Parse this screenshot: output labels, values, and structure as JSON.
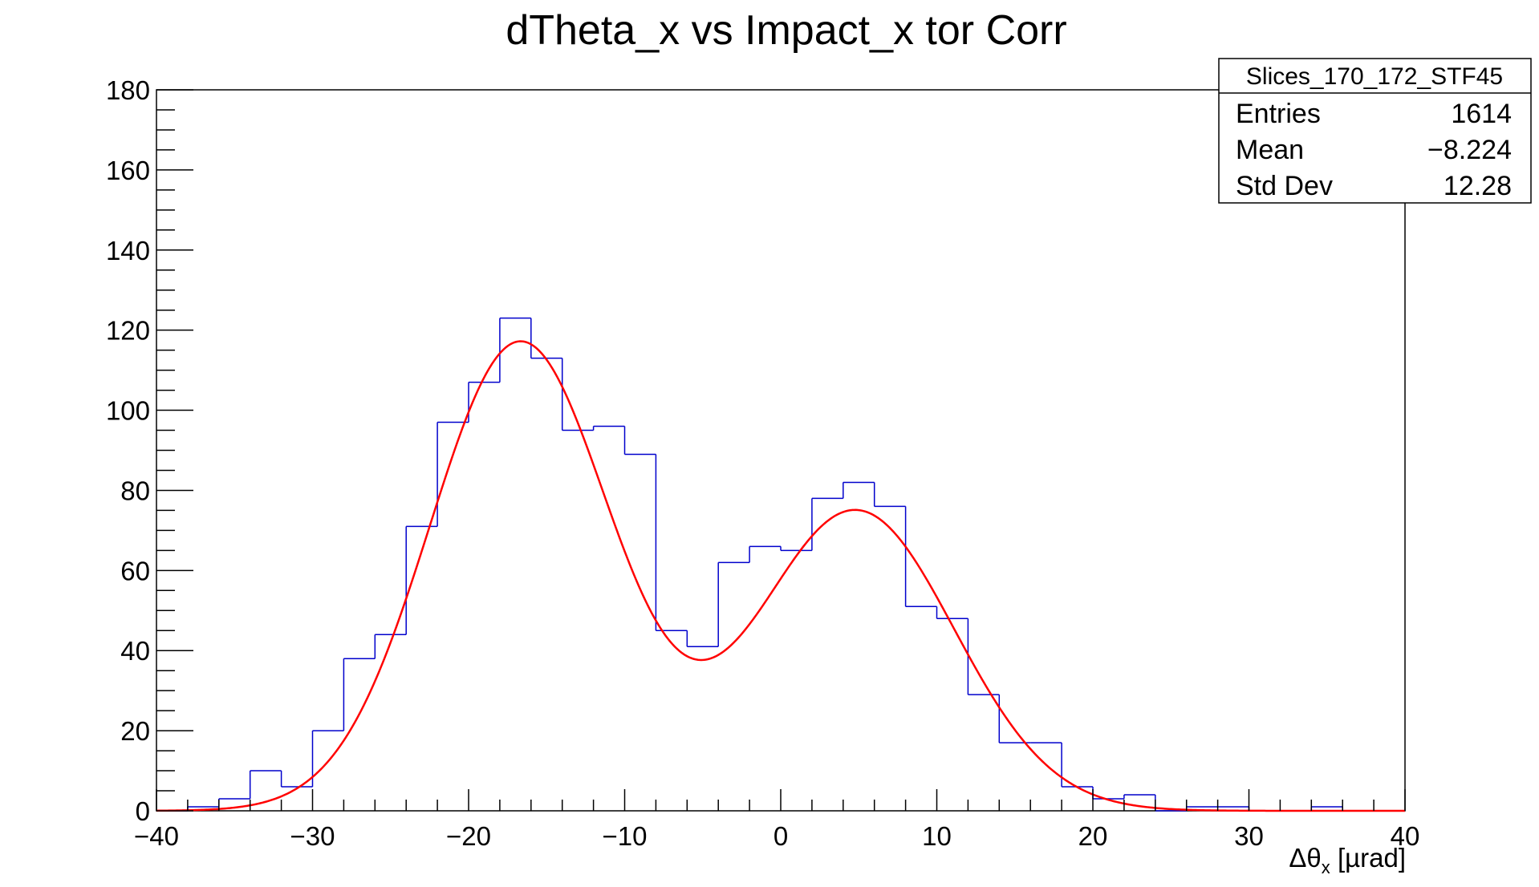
{
  "chart_data": {
    "type": "histogram",
    "title": "dTheta_x vs Impact_x tor Corr",
    "xlabel": "Δθ",
    "xlabel_sub": "x",
    "xlabel_unit": " [µrad]",
    "xlim": [
      -40,
      40
    ],
    "ylim": [
      0,
      180
    ],
    "xticks": [
      "−40",
      "−30",
      "−20",
      "−10",
      "0",
      "10",
      "20",
      "30",
      "40"
    ],
    "xtick_values": [
      -40,
      -30,
      -20,
      -10,
      0,
      10,
      20,
      30,
      40
    ],
    "yticks": [
      "0",
      "20",
      "40",
      "60",
      "80",
      "100",
      "120",
      "140",
      "160",
      "180"
    ],
    "ytick_values": [
      0,
      20,
      40,
      60,
      80,
      100,
      120,
      140,
      160,
      180
    ],
    "bin_edges": [
      -40,
      -38,
      -36,
      -34,
      -32,
      -30,
      -28,
      -26,
      -24,
      -22,
      -20,
      -18,
      -16,
      -14,
      -12,
      -10,
      -8,
      -6,
      -4,
      -2,
      0,
      2,
      4,
      6,
      8,
      10,
      12,
      14,
      16,
      18,
      20,
      22,
      24,
      26,
      28,
      30,
      32,
      34,
      36,
      38,
      40
    ],
    "counts": [
      0,
      1,
      3,
      10,
      6,
      20,
      38,
      44,
      71,
      97,
      107,
      123,
      113,
      95,
      96,
      89,
      45,
      41,
      62,
      66,
      65,
      78,
      82,
      76,
      51,
      48,
      29,
      17,
      17,
      6,
      3,
      4,
      0,
      1,
      1,
      0,
      0,
      1,
      0,
      0
    ],
    "histogram_color": "#0000cc",
    "fit": {
      "type": "double-gaussian",
      "color": "#ff0000",
      "components": [
        {
          "amplitude": 117,
          "mean": -16.7,
          "sigma": 5.8
        },
        {
          "amplitude": 75,
          "mean": 4.8,
          "sigma": 6.3
        }
      ]
    },
    "stats_box": {
      "title": "Slices_170_172_STF45",
      "rows": [
        {
          "label": "Entries",
          "value": "1614"
        },
        {
          "label": "Mean",
          "value": "−8.224"
        },
        {
          "label": "Std Dev",
          "value": "12.28"
        }
      ]
    }
  }
}
